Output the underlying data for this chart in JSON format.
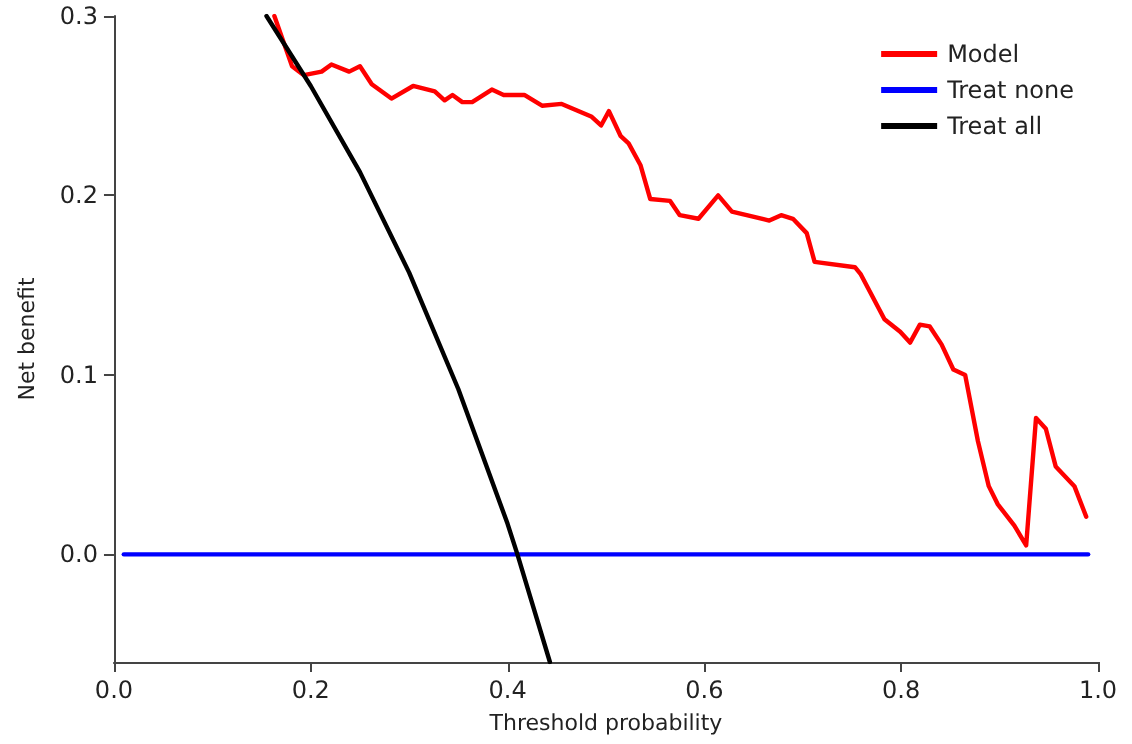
{
  "chart_data": {
    "type": "line",
    "xlabel": "Threshold probability",
    "ylabel": "Net benefit",
    "xlim": [
      0,
      1
    ],
    "ylim": [
      -0.06,
      0.3
    ],
    "xticks": [
      {
        "value": 0,
        "label": "0.0"
      },
      {
        "value": 0.2,
        "label": "0.2"
      },
      {
        "value": 0.4,
        "label": "0.4"
      },
      {
        "value": 0.6,
        "label": "0.6"
      },
      {
        "value": 0.8,
        "label": "0.8"
      },
      {
        "value": 1,
        "label": "1.0"
      }
    ],
    "yticks": [
      {
        "value": 0,
        "label": "0.0"
      },
      {
        "value": 0.1,
        "label": "0.1"
      },
      {
        "value": 0.2,
        "label": "0.2"
      },
      {
        "value": 0.3,
        "label": "0.3"
      }
    ],
    "grid": false,
    "legend": "top right",
    "marker": "none",
    "line_style": "solid",
    "series": [
      {
        "name": "Model",
        "color": "#ff0000",
        "x": [
          0.163,
          0.181,
          0.193,
          0.211,
          0.221,
          0.239,
          0.25,
          0.262,
          0.282,
          0.304,
          0.326,
          0.336,
          0.344,
          0.354,
          0.364,
          0.384,
          0.396,
          0.417,
          0.435,
          0.455,
          0.485,
          0.495,
          0.503,
          0.515,
          0.523,
          0.535,
          0.545,
          0.565,
          0.575,
          0.594,
          0.614,
          0.628,
          0.666,
          0.678,
          0.69,
          0.704,
          0.712,
          0.753,
          0.759,
          0.783,
          0.799,
          0.809,
          0.819,
          0.829,
          0.841,
          0.853,
          0.865,
          0.878,
          0.889,
          0.898,
          0.915,
          0.927,
          0.937,
          0.947,
          0.957,
          0.976,
          0.988
        ],
        "values": [
          0.3,
          0.272,
          0.267,
          0.269,
          0.273,
          0.269,
          0.272,
          0.262,
          0.254,
          0.261,
          0.258,
          0.253,
          0.256,
          0.252,
          0.252,
          0.259,
          0.256,
          0.256,
          0.25,
          0.251,
          0.244,
          0.239,
          0.247,
          0.233,
          0.229,
          0.217,
          0.198,
          0.197,
          0.189,
          0.187,
          0.2,
          0.191,
          0.186,
          0.189,
          0.187,
          0.179,
          0.163,
          0.16,
          0.156,
          0.131,
          0.124,
          0.118,
          0.128,
          0.127,
          0.117,
          0.103,
          0.1,
          0.063,
          0.038,
          0.028,
          0.016,
          0.005,
          0.076,
          0.07,
          0.049,
          0.038,
          0.021
        ]
      },
      {
        "name": "Treat none",
        "color": "#0000ff",
        "x": [
          0.01,
          0.99
        ],
        "values": [
          0,
          0
        ]
      },
      {
        "name": "Treat all",
        "color": "#000000",
        "x": [
          0.155,
          0.2,
          0.25,
          0.3,
          0.35,
          0.4,
          0.41,
          0.443
        ],
        "values": [
          0.3,
          0.261,
          0.213,
          0.157,
          0.092,
          0.017,
          0,
          -0.06
        ]
      }
    ]
  }
}
